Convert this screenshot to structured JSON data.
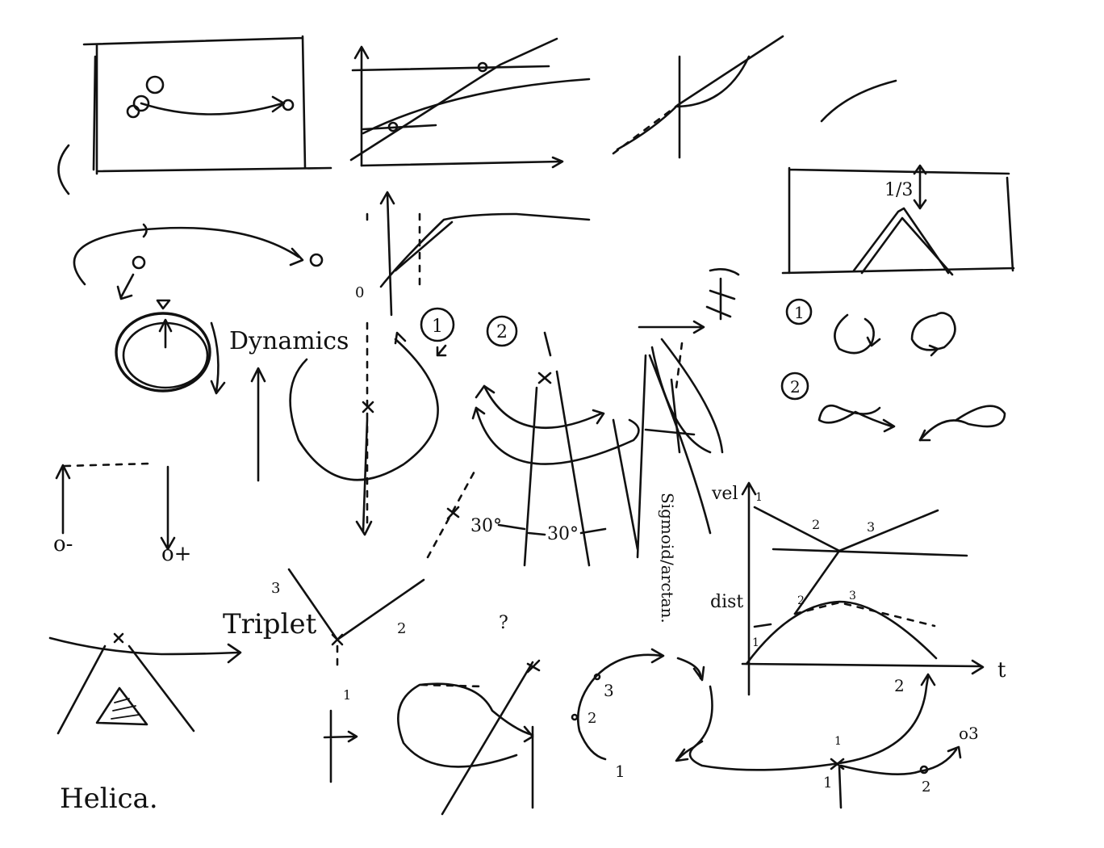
{
  "labels": {
    "dynamics": "Dynamics",
    "triplet": "Triplet",
    "helica": "Helica.",
    "sigmoid_arctan": "Sigmoid/arctan.",
    "vel": "vel",
    "dist": "dist",
    "t_axis": "t",
    "one_third": "1/3",
    "angle_a": "30°",
    "angle_b": "30°",
    "question_mark": "?",
    "circle_one": "1",
    "circle_two": "2",
    "num_1": "1",
    "num_2": "2",
    "num_3": "3",
    "o_minus": "o-",
    "o_plus": "o+",
    "zero": "0",
    "o_three": "o3"
  }
}
